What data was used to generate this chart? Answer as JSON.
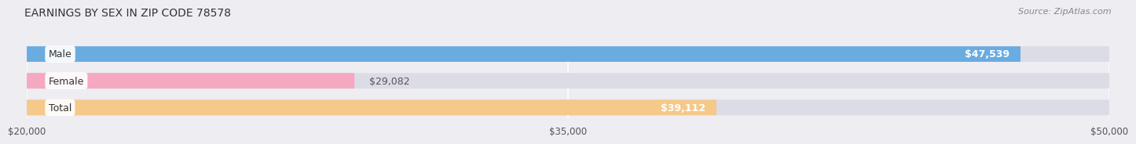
{
  "title": "EARNINGS BY SEX IN ZIP CODE 78578",
  "source": "Source: ZipAtlas.com",
  "categories": [
    "Male",
    "Female",
    "Total"
  ],
  "values": [
    47539,
    29082,
    39112
  ],
  "bar_colors": [
    "#6aabe0",
    "#f5a8c0",
    "#f5c98a"
  ],
  "bar_labels": [
    "$47,539",
    "$29,082",
    "$39,112"
  ],
  "xmin": 20000,
  "xmax": 50000,
  "xticks": [
    20000,
    35000,
    50000
  ],
  "xtick_labels": [
    "$20,000",
    "$35,000",
    "$50,000"
  ],
  "background_color": "#ededf2",
  "bar_bg_color": "#dcdce6",
  "title_fontsize": 10,
  "source_fontsize": 8,
  "label_fontsize": 9,
  "tick_fontsize": 8.5
}
